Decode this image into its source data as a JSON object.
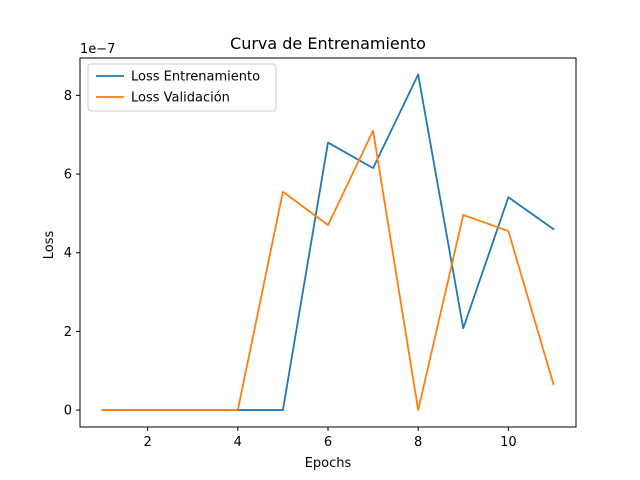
{
  "chart_data": {
    "type": "line",
    "title": "Curva de Entrenamiento",
    "xlabel": "Epochs",
    "ylabel": "Loss",
    "y_offset_label": "1e−7",
    "y_scale_factor": 1e-07,
    "xlim": [
      0.5,
      11.5
    ],
    "ylim": [
      -0.43,
      8.95
    ],
    "x_ticks": [
      2,
      4,
      6,
      8,
      10
    ],
    "y_ticks": [
      0,
      2,
      4,
      6,
      8
    ],
    "grid": false,
    "legend_position": "top-left",
    "x": [
      1,
      2,
      3,
      4,
      5,
      6,
      7,
      8,
      9,
      10,
      11
    ],
    "series": [
      {
        "name": "Loss Entrenamiento",
        "color": "#1f77b4",
        "values": [
          0.0,
          0.0,
          0.0,
          0.0,
          0.0,
          6.8,
          6.15,
          8.53,
          2.08,
          5.41,
          4.6
        ]
      },
      {
        "name": "Loss Validación",
        "color": "#ff7f0e",
        "values": [
          0.0,
          0.0,
          0.0,
          0.0,
          5.55,
          4.7,
          7.1,
          0.0,
          4.96,
          4.55,
          0.66
        ]
      }
    ]
  }
}
